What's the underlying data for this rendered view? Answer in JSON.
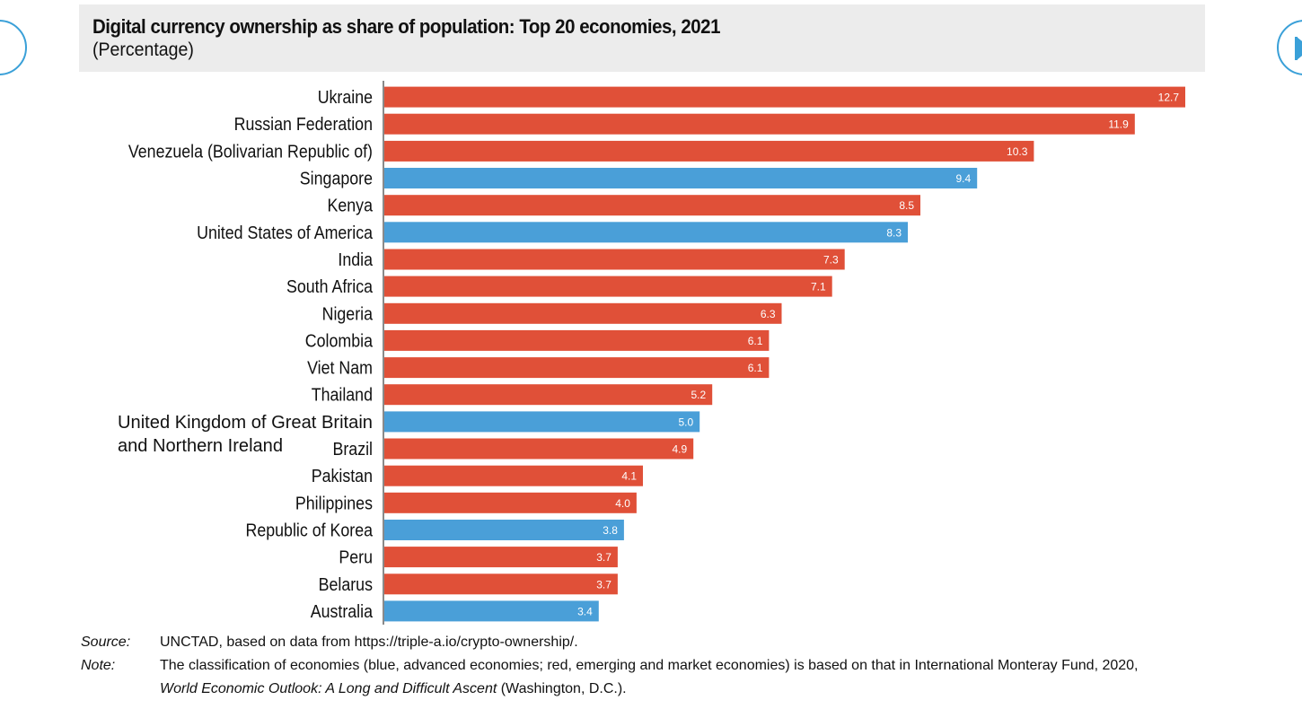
{
  "chart_data": {
    "type": "bar",
    "orientation": "horizontal",
    "title": "Digital currency ownership as share of population: Top 20 economies, 2021",
    "subtitle": "(Percentage)",
    "categories": [
      "Ukraine",
      "Russian Federation",
      "Venezuela (Bolivarian Republic of)",
      "Singapore",
      "Kenya",
      "United States of America",
      "India",
      "South Africa",
      "Nigeria",
      "Colombia",
      "Viet Nam",
      "Thailand",
      "United Kingdom of Great Britain and Northern Ireland",
      "Brazil",
      "Pakistan",
      "Philippines",
      "Republic of Korea",
      "Peru",
      "Belarus",
      "Australia"
    ],
    "values": [
      12.7,
      11.9,
      10.3,
      9.4,
      8.5,
      8.3,
      7.3,
      7.1,
      6.3,
      6.1,
      6.1,
      5.2,
      5.0,
      4.9,
      4.1,
      4.0,
      3.8,
      3.7,
      3.7,
      3.4
    ],
    "value_labels": [
      "12.7",
      "11.9",
      "10.3",
      "9.4",
      "8.5",
      "8.3",
      "7.3",
      "7.1",
      "6.3",
      "6.1",
      "6.1",
      "5.2",
      "5.0",
      "4.9",
      "4.1",
      "4.0",
      "3.8",
      "3.7",
      "3.7",
      "3.4"
    ],
    "groups": [
      "emerging",
      "emerging",
      "emerging",
      "advanced",
      "emerging",
      "advanced",
      "emerging",
      "emerging",
      "emerging",
      "emerging",
      "emerging",
      "emerging",
      "advanced",
      "emerging",
      "emerging",
      "emerging",
      "advanced",
      "emerging",
      "emerging",
      "advanced"
    ],
    "colors": {
      "advanced": "#4a9fd8",
      "emerging": "#e05038"
    },
    "xlim": [
      0,
      12.7
    ],
    "grid": false,
    "legend": "none",
    "xlabel": "",
    "ylabel": ""
  },
  "footer": {
    "source_key": "Source:",
    "source_text": "UNCTAD, based on data from https://triple-a.io/crypto-ownership/.",
    "note_key": "Note:",
    "note_text_1": "The classification of economies (blue, advanced economies; red, emerging and market economies) is based on that in International Monteray Fund, 2020,",
    "note_text_2_italic": "World Economic Outlook: A Long and Difficult Ascent",
    "note_text_2_rest": " (Washington, D.C.)."
  },
  "navigation": {
    "prev_icon": "circle-prev-icon",
    "next_icon": "play-next-icon"
  }
}
